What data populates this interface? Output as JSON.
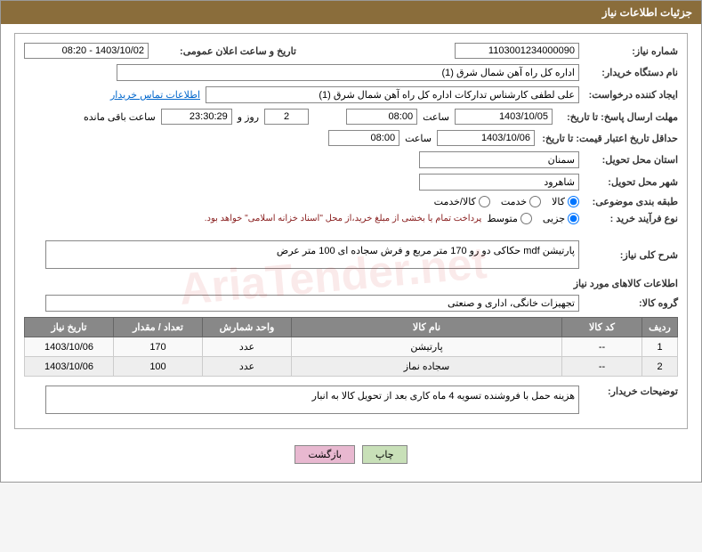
{
  "header": {
    "title": "جزئیات اطلاعات نیاز"
  },
  "fields": {
    "need_number_label": "شماره نیاز:",
    "need_number": "1103001234000090",
    "announce_date_label": "تاریخ و ساعت اعلان عمومی:",
    "announce_date": "1403/10/02 - 08:20",
    "buyer_org_label": "نام دستگاه خریدار:",
    "buyer_org": "اداره کل راه آهن شمال شرق (1)",
    "requester_label": "ایجاد کننده درخواست:",
    "requester": "علی لطفی کارشناس تدارکات اداره کل راه آهن شمال شرق (1)",
    "contact_link": "اطلاعات تماس خریدار",
    "response_deadline_label": "مهلت ارسال پاسخ: تا تاریخ:",
    "response_date": "1403/10/05",
    "time_label": "ساعت",
    "response_time": "08:00",
    "days": "2",
    "days_label": "روز و",
    "remaining": "23:30:29",
    "remaining_label": "ساعت باقی مانده",
    "price_validity_label": "حداقل تاریخ اعتبار قیمت: تا تاریخ:",
    "price_date": "1403/10/06",
    "price_time": "08:00",
    "delivery_province_label": "استان محل تحویل:",
    "delivery_province": "سمنان",
    "delivery_city_label": "شهر محل تحویل:",
    "delivery_city": "شاهرود",
    "category_label": "طبقه بندی موضوعی:",
    "cat_goods": "کالا",
    "cat_service": "خدمت",
    "cat_goods_service": "کالا/خدمت",
    "process_type_label": "نوع فرآیند خرید :",
    "proc_partial": "جزیی",
    "proc_medium": "متوسط",
    "payment_note": "پرداخت تمام یا بخشی از مبلغ خرید،از محل \"اسناد خزانه اسلامی\" خواهد بود.",
    "description_label": "شرح کلی نیاز:",
    "description": "پارتیشن mdf حکاکی دو رو 170 متر مربع و فرش سجاده ای 100 متر عرض",
    "goods_info_title": "اطلاعات کالاهای مورد نیاز",
    "goods_group_label": "گروه کالا:",
    "goods_group": "تجهیزات خانگی، اداری و صنعتی",
    "buyer_notes_label": "توضیحات خریدار:",
    "buyer_notes": "هزینه حمل با فروشنده تسویه 4 ماه کاری بعد از تحویل کالا به انبار"
  },
  "table": {
    "headers": [
      "ردیف",
      "کد کالا",
      "نام کالا",
      "واحد شمارش",
      "تعداد / مقدار",
      "تاریخ نیاز"
    ],
    "rows": [
      [
        "1",
        "--",
        "پارتیشن",
        "عدد",
        "170",
        "1403/10/06"
      ],
      [
        "2",
        "--",
        "سجاده نماز",
        "عدد",
        "100",
        "1403/10/06"
      ]
    ]
  },
  "buttons": {
    "print": "چاپ",
    "back": "بازگشت"
  },
  "watermark": "AriaTender.net"
}
